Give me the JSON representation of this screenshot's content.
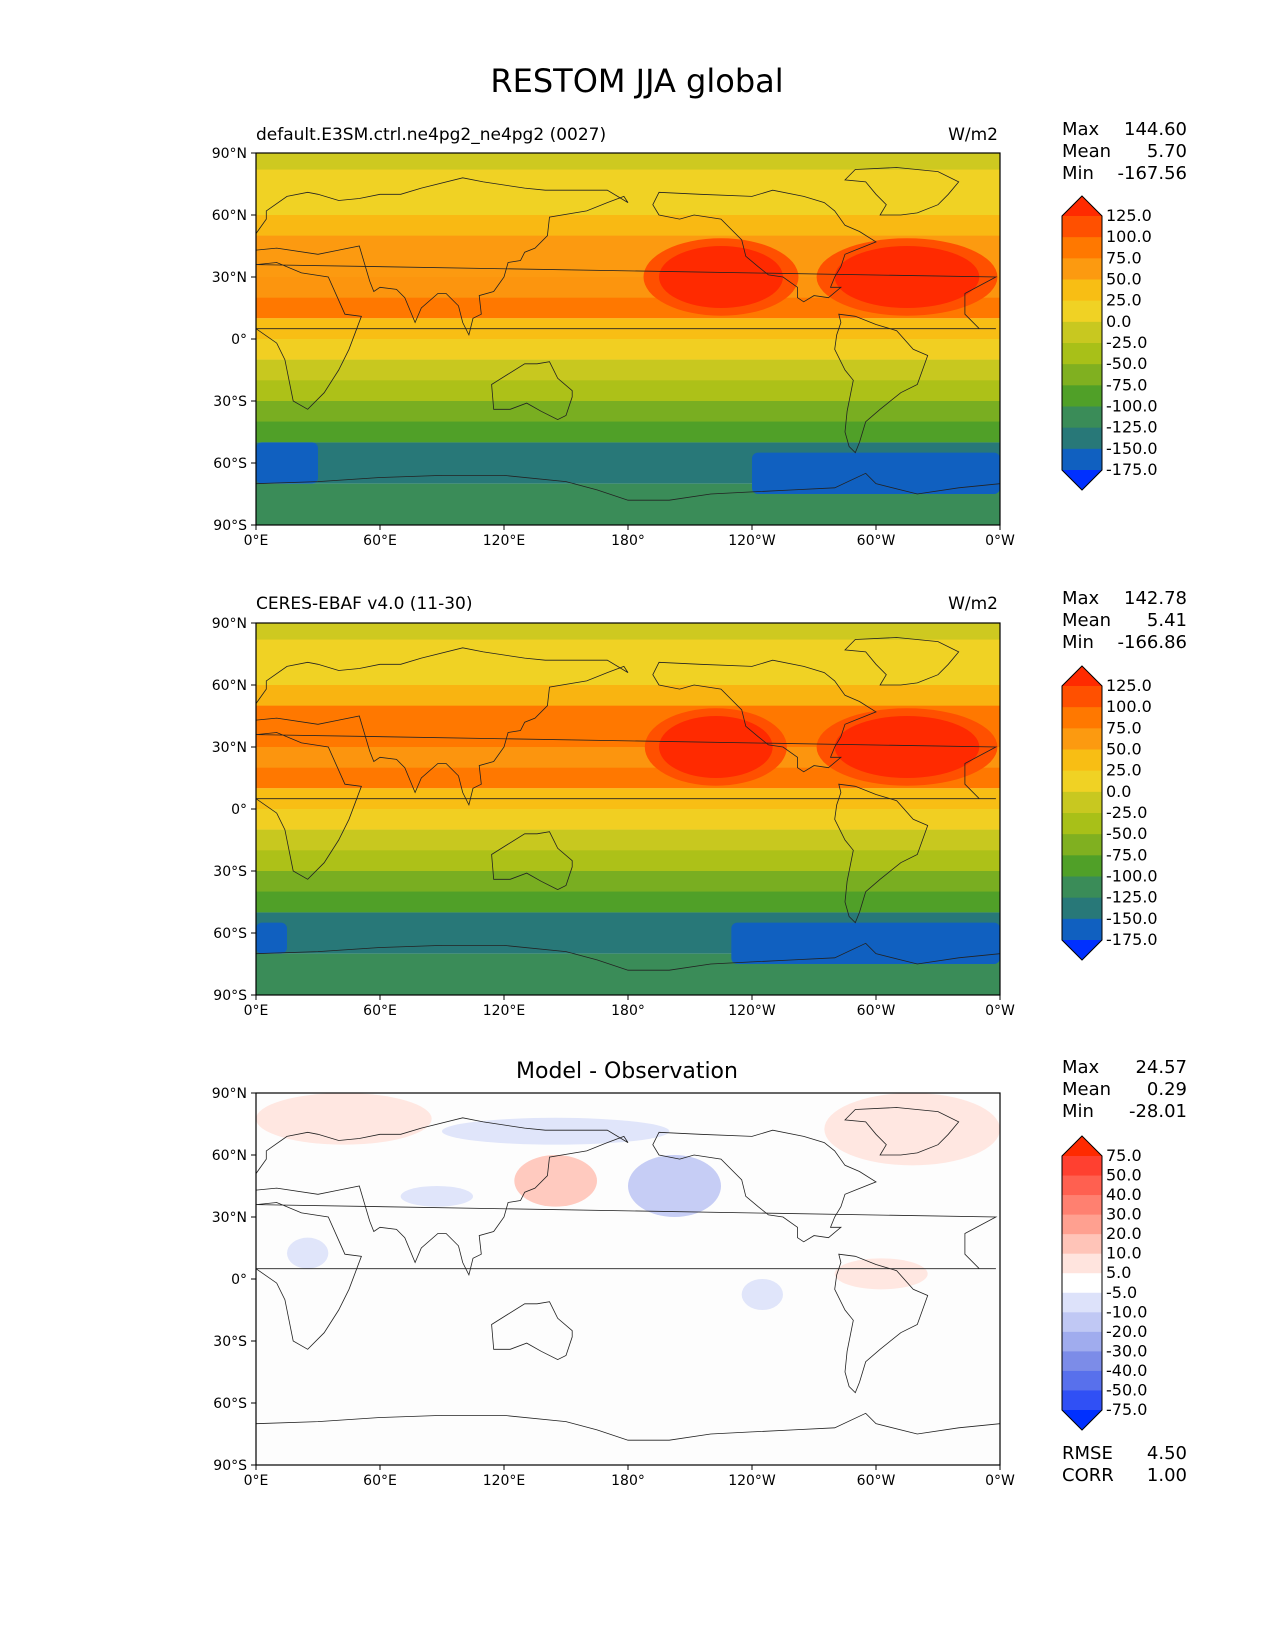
{
  "figure": {
    "title": "RESTOM JJA global"
  },
  "lon_ticks": [
    "0°E",
    "60°E",
    "120°E",
    "180°",
    "120°W",
    "60°W",
    "0°W"
  ],
  "lat_ticks": [
    "90°N",
    "60°N",
    "30°N",
    "0°",
    "30°S",
    "60°S",
    "90°S"
  ],
  "chart_data": [
    {
      "type": "heatmap",
      "panel": "model",
      "title": "default.E3SM.ctrl.ne4pg2_ne4pg2 (0027)",
      "units": "W/m2",
      "stats": [
        [
          "Max",
          "144.60"
        ],
        [
          "Mean",
          "5.70"
        ],
        [
          "Min",
          "-167.56"
        ]
      ],
      "xlim": [
        0,
        360
      ],
      "ylim": [
        -90,
        90
      ],
      "colorbar_levels": [
        "125.0",
        "100.0",
        "75.0",
        "50.0",
        "25.0",
        "0.0",
        "-25.0",
        "-50.0",
        "-75.0",
        "-100.0",
        "-125.0",
        "-150.0",
        "-175.0"
      ],
      "colorbar_colors": [
        "#ff2a00",
        "#ff5000",
        "#ff7800",
        "#fc9a10",
        "#f8be14",
        "#f0d224",
        "#c8c820",
        "#a8c018",
        "#80b020",
        "#50a028",
        "#3a8c58",
        "#287878",
        "#1060c0",
        "#0030ff"
      ],
      "zonal_bands": [
        {
          "lat": [
            60,
            90
          ],
          "value": 0
        },
        {
          "lat": [
            30,
            60
          ],
          "value": 70
        },
        {
          "lat": [
            10,
            30
          ],
          "value": 80
        },
        {
          "lat": [
            -10,
            10
          ],
          "value": 45
        },
        {
          "lat": [
            -30,
            -10
          ],
          "value": -20
        },
        {
          "lat": [
            -50,
            -30
          ],
          "value": -90
        },
        {
          "lat": [
            -70,
            -50
          ],
          "value": -140
        },
        {
          "lat": [
            -90,
            -70
          ],
          "value": -105
        }
      ],
      "regional_max": [
        {
          "lon": [
            195,
            255
          ],
          "lat": [
            15,
            45
          ],
          "value": 125
        },
        {
          "lon": [
            280,
            350
          ],
          "lat": [
            15,
            45
          ],
          "value": 125
        }
      ],
      "regional_min": [
        {
          "lon": [
            0,
            30
          ],
          "lat": [
            -70,
            -50
          ],
          "value": -165
        },
        {
          "lon": [
            240,
            360
          ],
          "lat": [
            -75,
            -55
          ],
          "value": -165
        }
      ]
    },
    {
      "type": "heatmap",
      "panel": "observation",
      "title": "CERES-EBAF v4.0 (11-30)",
      "units": "W/m2",
      "stats": [
        [
          "Max",
          "142.78"
        ],
        [
          "Mean",
          "5.41"
        ],
        [
          "Min",
          "-166.86"
        ]
      ],
      "xlim": [
        0,
        360
      ],
      "ylim": [
        -90,
        90
      ],
      "colorbar_levels": [
        "125.0",
        "100.0",
        "75.0",
        "50.0",
        "25.0",
        "0.0",
        "-25.0",
        "-50.0",
        "-75.0",
        "-100.0",
        "-125.0",
        "-150.0",
        "-175.0"
      ],
      "colorbar_colors": [
        "#ff2a00",
        "#ff5000",
        "#ff7800",
        "#fc9a10",
        "#f8be14",
        "#f0d224",
        "#c8c820",
        "#a8c018",
        "#80b020",
        "#50a028",
        "#3a8c58",
        "#287878",
        "#1060c0",
        "#0030ff"
      ],
      "zonal_bands": [
        {
          "lat": [
            60,
            90
          ],
          "value": 0
        },
        {
          "lat": [
            30,
            60
          ],
          "value": 75
        },
        {
          "lat": [
            10,
            30
          ],
          "value": 85
        },
        {
          "lat": [
            -10,
            10
          ],
          "value": 45
        },
        {
          "lat": [
            -30,
            -10
          ],
          "value": -20
        },
        {
          "lat": [
            -50,
            -30
          ],
          "value": -90
        },
        {
          "lat": [
            -70,
            -50
          ],
          "value": -140
        },
        {
          "lat": [
            -90,
            -70
          ],
          "value": -105
        }
      ],
      "regional_max": [
        {
          "lon": [
            195,
            250
          ],
          "lat": [
            15,
            45
          ],
          "value": 125
        },
        {
          "lon": [
            280,
            350
          ],
          "lat": [
            15,
            45
          ],
          "value": 125
        }
      ],
      "regional_min": [
        {
          "lon": [
            0,
            15
          ],
          "lat": [
            -70,
            -55
          ],
          "value": -165
        },
        {
          "lon": [
            230,
            360
          ],
          "lat": [
            -75,
            -55
          ],
          "value": -165
        }
      ]
    },
    {
      "type": "heatmap",
      "panel": "difference",
      "title": "Model - Observation",
      "units": "",
      "stats": [
        [
          "Max",
          "24.57"
        ],
        [
          "Mean",
          "0.29"
        ],
        [
          "Min",
          "-28.01"
        ]
      ],
      "footer_stats": [
        [
          "RMSE",
          "4.50"
        ],
        [
          "CORR",
          "1.00"
        ]
      ],
      "xlim": [
        0,
        360
      ],
      "ylim": [
        -90,
        90
      ],
      "colorbar_levels": [
        "75.0",
        "50.0",
        "40.0",
        "30.0",
        "20.0",
        "10.0",
        "5.0",
        "-5.0",
        "-10.0",
        "-20.0",
        "-30.0",
        "-40.0",
        "-50.0",
        "-75.0"
      ],
      "colorbar_colors": [
        "#ff2a00",
        "#ff4030",
        "#ff6050",
        "#ff8070",
        "#ffa090",
        "#ffc4b8",
        "#ffe4de",
        "#ffffff",
        "#dde2fa",
        "#c0c8f4",
        "#a0acee",
        "#7c8ce8",
        "#5870ec",
        "#3050f5",
        "#0030ff"
      ],
      "anomalies": [
        {
          "lon": [
            0,
            85
          ],
          "lat": [
            65,
            90
          ],
          "value": 8
        },
        {
          "lon": [
            275,
            360
          ],
          "lat": [
            55,
            90
          ],
          "value": 8
        },
        {
          "lon": [
            90,
            200
          ],
          "lat": [
            65,
            78
          ],
          "value": -8
        },
        {
          "lon": [
            125,
            165
          ],
          "lat": [
            35,
            60
          ],
          "value": 10
        },
        {
          "lon": [
            180,
            225
          ],
          "lat": [
            30,
            60
          ],
          "value": -12
        },
        {
          "lon": [
            15,
            35
          ],
          "lat": [
            5,
            20
          ],
          "value": -8
        },
        {
          "lon": [
            235,
            255
          ],
          "lat": [
            -15,
            0
          ],
          "value": -8
        },
        {
          "lon": [
            280,
            325
          ],
          "lat": [
            -5,
            10
          ],
          "value": 6
        },
        {
          "lon": [
            70,
            105
          ],
          "lat": [
            35,
            45
          ],
          "value": -6
        }
      ]
    }
  ]
}
